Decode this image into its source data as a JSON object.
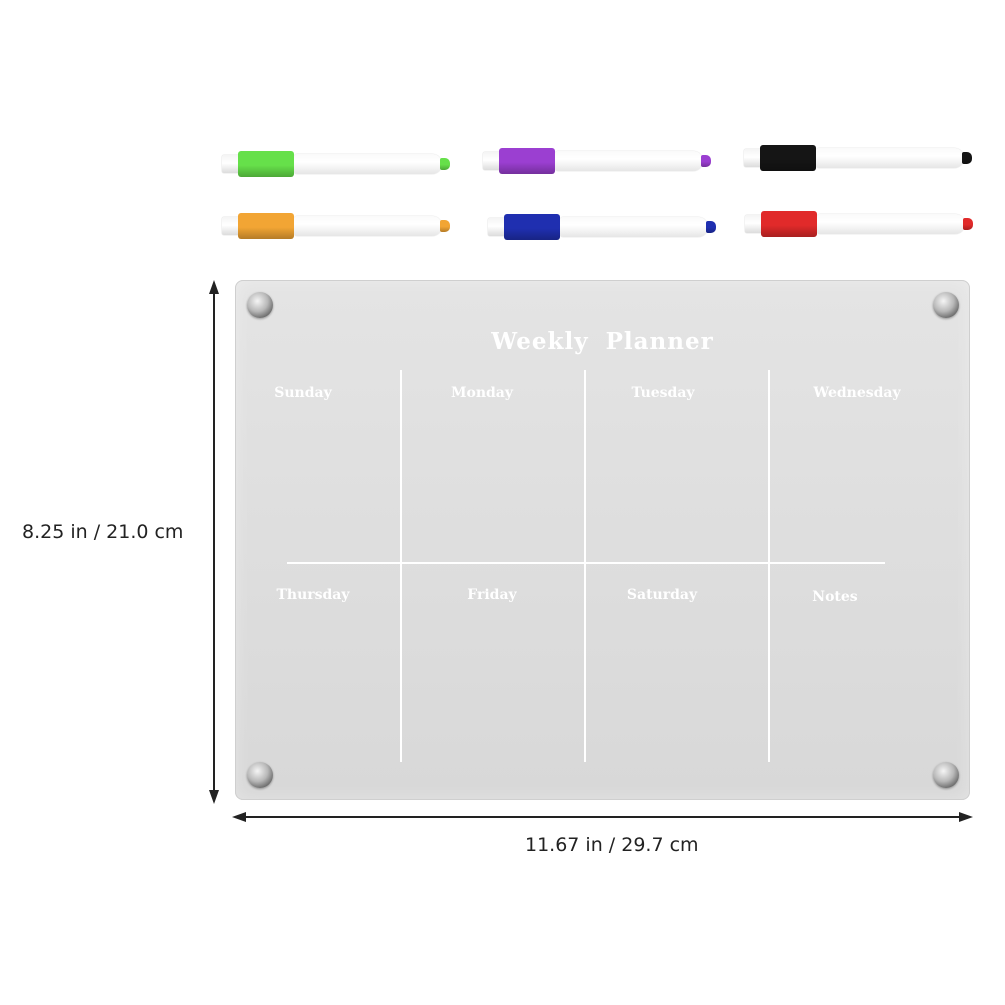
{
  "markers": [
    {
      "name": "green-marker",
      "color": "#66e04a"
    },
    {
      "name": "purple-marker",
      "color": "#9b3fd1"
    },
    {
      "name": "black-marker",
      "color": "#151515"
    },
    {
      "name": "orange-marker",
      "color": "#f2a534"
    },
    {
      "name": "blue-marker",
      "color": "#1f2fb0"
    },
    {
      "name": "red-marker",
      "color": "#e12a2a"
    }
  ],
  "board": {
    "title": "Weekly  Planner",
    "days": [
      "Sunday",
      "Monday",
      "Tuesday",
      "Wednesday",
      "Thursday",
      "Friday",
      "Saturday",
      "Notes"
    ]
  },
  "dimensions": {
    "height_label": "8.25 in / 21.0 cm",
    "width_label": "11.67 in / 29.7 cm"
  }
}
